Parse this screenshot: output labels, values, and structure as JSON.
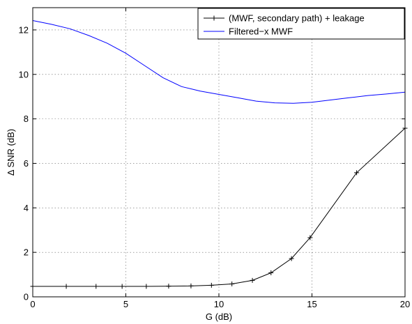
{
  "chart_data": {
    "type": "line",
    "xlabel": "G (dB)",
    "ylabel": "Δ SNR (dB)",
    "xlim": [
      0,
      20
    ],
    "ylim": [
      0,
      13
    ],
    "xticks": [
      0,
      5,
      10,
      15,
      20
    ],
    "yticks": [
      0,
      2,
      4,
      6,
      8,
      10,
      12
    ],
    "grid": true,
    "legend_position": "top-right",
    "series": [
      {
        "name": "(MWF, secondary path) + leakage",
        "color": "#000000",
        "marker": "plus",
        "x": [
          0,
          1.8,
          3.4,
          4.8,
          6.1,
          7.3,
          8.5,
          9.6,
          10.7,
          11.8,
          12.8,
          13.9,
          14.9,
          17.4,
          20
        ],
        "y": [
          0.47,
          0.47,
          0.47,
          0.47,
          0.47,
          0.48,
          0.49,
          0.52,
          0.58,
          0.74,
          1.08,
          1.72,
          2.66,
          5.58,
          7.58
        ]
      },
      {
        "name": "Filtered−x MWF",
        "color": "#0000ff",
        "marker": "none",
        "x": [
          0,
          1,
          2,
          3,
          4,
          5,
          6,
          7,
          8,
          9,
          10,
          11,
          12,
          13,
          14,
          15,
          16,
          17,
          18,
          19,
          20
        ],
        "y": [
          12.42,
          12.25,
          12.05,
          11.75,
          11.4,
          10.95,
          10.4,
          9.85,
          9.45,
          9.25,
          9.1,
          8.95,
          8.8,
          8.72,
          8.7,
          8.75,
          8.85,
          8.95,
          9.05,
          9.12,
          9.2
        ]
      }
    ]
  }
}
